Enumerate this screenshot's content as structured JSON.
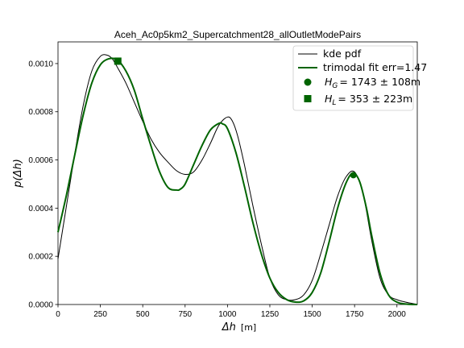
{
  "chart_data": {
    "type": "line",
    "title": "Aceh_Ac0p5km2_Supercatchment28_allOutletModePairs",
    "xlabel": "Δh",
    "xlabel_unit": "[m]",
    "ylabel": "p(Δh)",
    "xlim": [
      0,
      2120
    ],
    "ylim": [
      0,
      0.00109
    ],
    "x_ticks": [
      0,
      250,
      500,
      750,
      1000,
      1250,
      1500,
      1750,
      2000
    ],
    "x_tick_labels": [
      "0",
      "250",
      "500",
      "750",
      "1000",
      "1250",
      "1500",
      "1750",
      "2000"
    ],
    "y_ticks": [
      0,
      0.0002,
      0.0004,
      0.0006,
      0.0008,
      0.001
    ],
    "y_tick_labels": [
      "0.0000",
      "0.0002",
      "0.0004",
      "0.0006",
      "0.0008",
      "0.0010"
    ],
    "legend_position": "top-right",
    "series": [
      {
        "name": "kde pdf",
        "color": "#000000",
        "x": [
          0,
          50,
          100,
          150,
          200,
          250,
          290,
          320,
          350,
          400,
          450,
          500,
          550,
          600,
          650,
          700,
          750,
          800,
          850,
          900,
          950,
          1000,
          1030,
          1060,
          1100,
          1150,
          1200,
          1250,
          1300,
          1350,
          1400,
          1450,
          1500,
          1550,
          1600,
          1650,
          1700,
          1750,
          1800,
          1850,
          1900,
          1950,
          2000,
          2050,
          2100,
          2120
        ],
        "y": [
          0.00019,
          0.00041,
          0.00063,
          0.00083,
          0.00097,
          0.00103,
          0.001035,
          0.00102,
          0.000985,
          0.00092,
          0.00084,
          0.00076,
          0.000685,
          0.00063,
          0.00059,
          0.000555,
          0.00054,
          0.00055,
          0.0006,
          0.00067,
          0.000745,
          0.000778,
          0.00076,
          0.0007,
          0.00058,
          0.00041,
          0.00025,
          0.00011,
          4e-05,
          2e-05,
          2e-05,
          4e-05,
          0.0001,
          0.00021,
          0.00033,
          0.00045,
          0.00053,
          0.00055,
          0.00046,
          0.00027,
          0.00011,
          4e-05,
          2e-05,
          1e-05,
          3e-06,
          1e-06
        ]
      },
      {
        "name": "trimodal fit err=1.47",
        "color": "#006400",
        "x": [
          0,
          50,
          100,
          150,
          200,
          250,
          300,
          350,
          400,
          450,
          500,
          550,
          600,
          650,
          700,
          720,
          750,
          800,
          850,
          900,
          950,
          970,
          1000,
          1050,
          1100,
          1150,
          1200,
          1250,
          1300,
          1350,
          1400,
          1450,
          1500,
          1550,
          1600,
          1650,
          1700,
          1740,
          1780,
          1820,
          1850,
          1900,
          1950,
          2000,
          2050,
          2100,
          2120
        ],
        "y": [
          0.0003,
          0.000455,
          0.000625,
          0.00079,
          0.00092,
          0.000995,
          0.00102,
          0.001015,
          0.00097,
          0.00089,
          0.00077,
          0.000655,
          0.00055,
          0.000485,
          0.000475,
          0.000478,
          0.0005,
          0.00058,
          0.00066,
          0.000725,
          0.000752,
          0.00075,
          0.00073,
          0.00063,
          0.00049,
          0.00034,
          0.00021,
          0.00011,
          5e-05,
          2e-05,
          1e-05,
          1.5e-05,
          5e-05,
          0.00013,
          0.00026,
          0.0004,
          0.000505,
          0.000545,
          0.00051,
          0.0004,
          0.00029,
          0.00013,
          4e-05,
          1e-05,
          2e-06,
          0,
          0
        ]
      }
    ],
    "markers": [
      {
        "name": "H_G",
        "label_value": "= 1743 ± 108m",
        "shape": "circle",
        "color": "#006400",
        "x": 1743,
        "y": 0.000537
      },
      {
        "name": "H_L",
        "label_value": "= 353 ± 223m",
        "shape": "square",
        "color": "#006400",
        "x": 353,
        "y": 0.00101
      }
    ]
  }
}
